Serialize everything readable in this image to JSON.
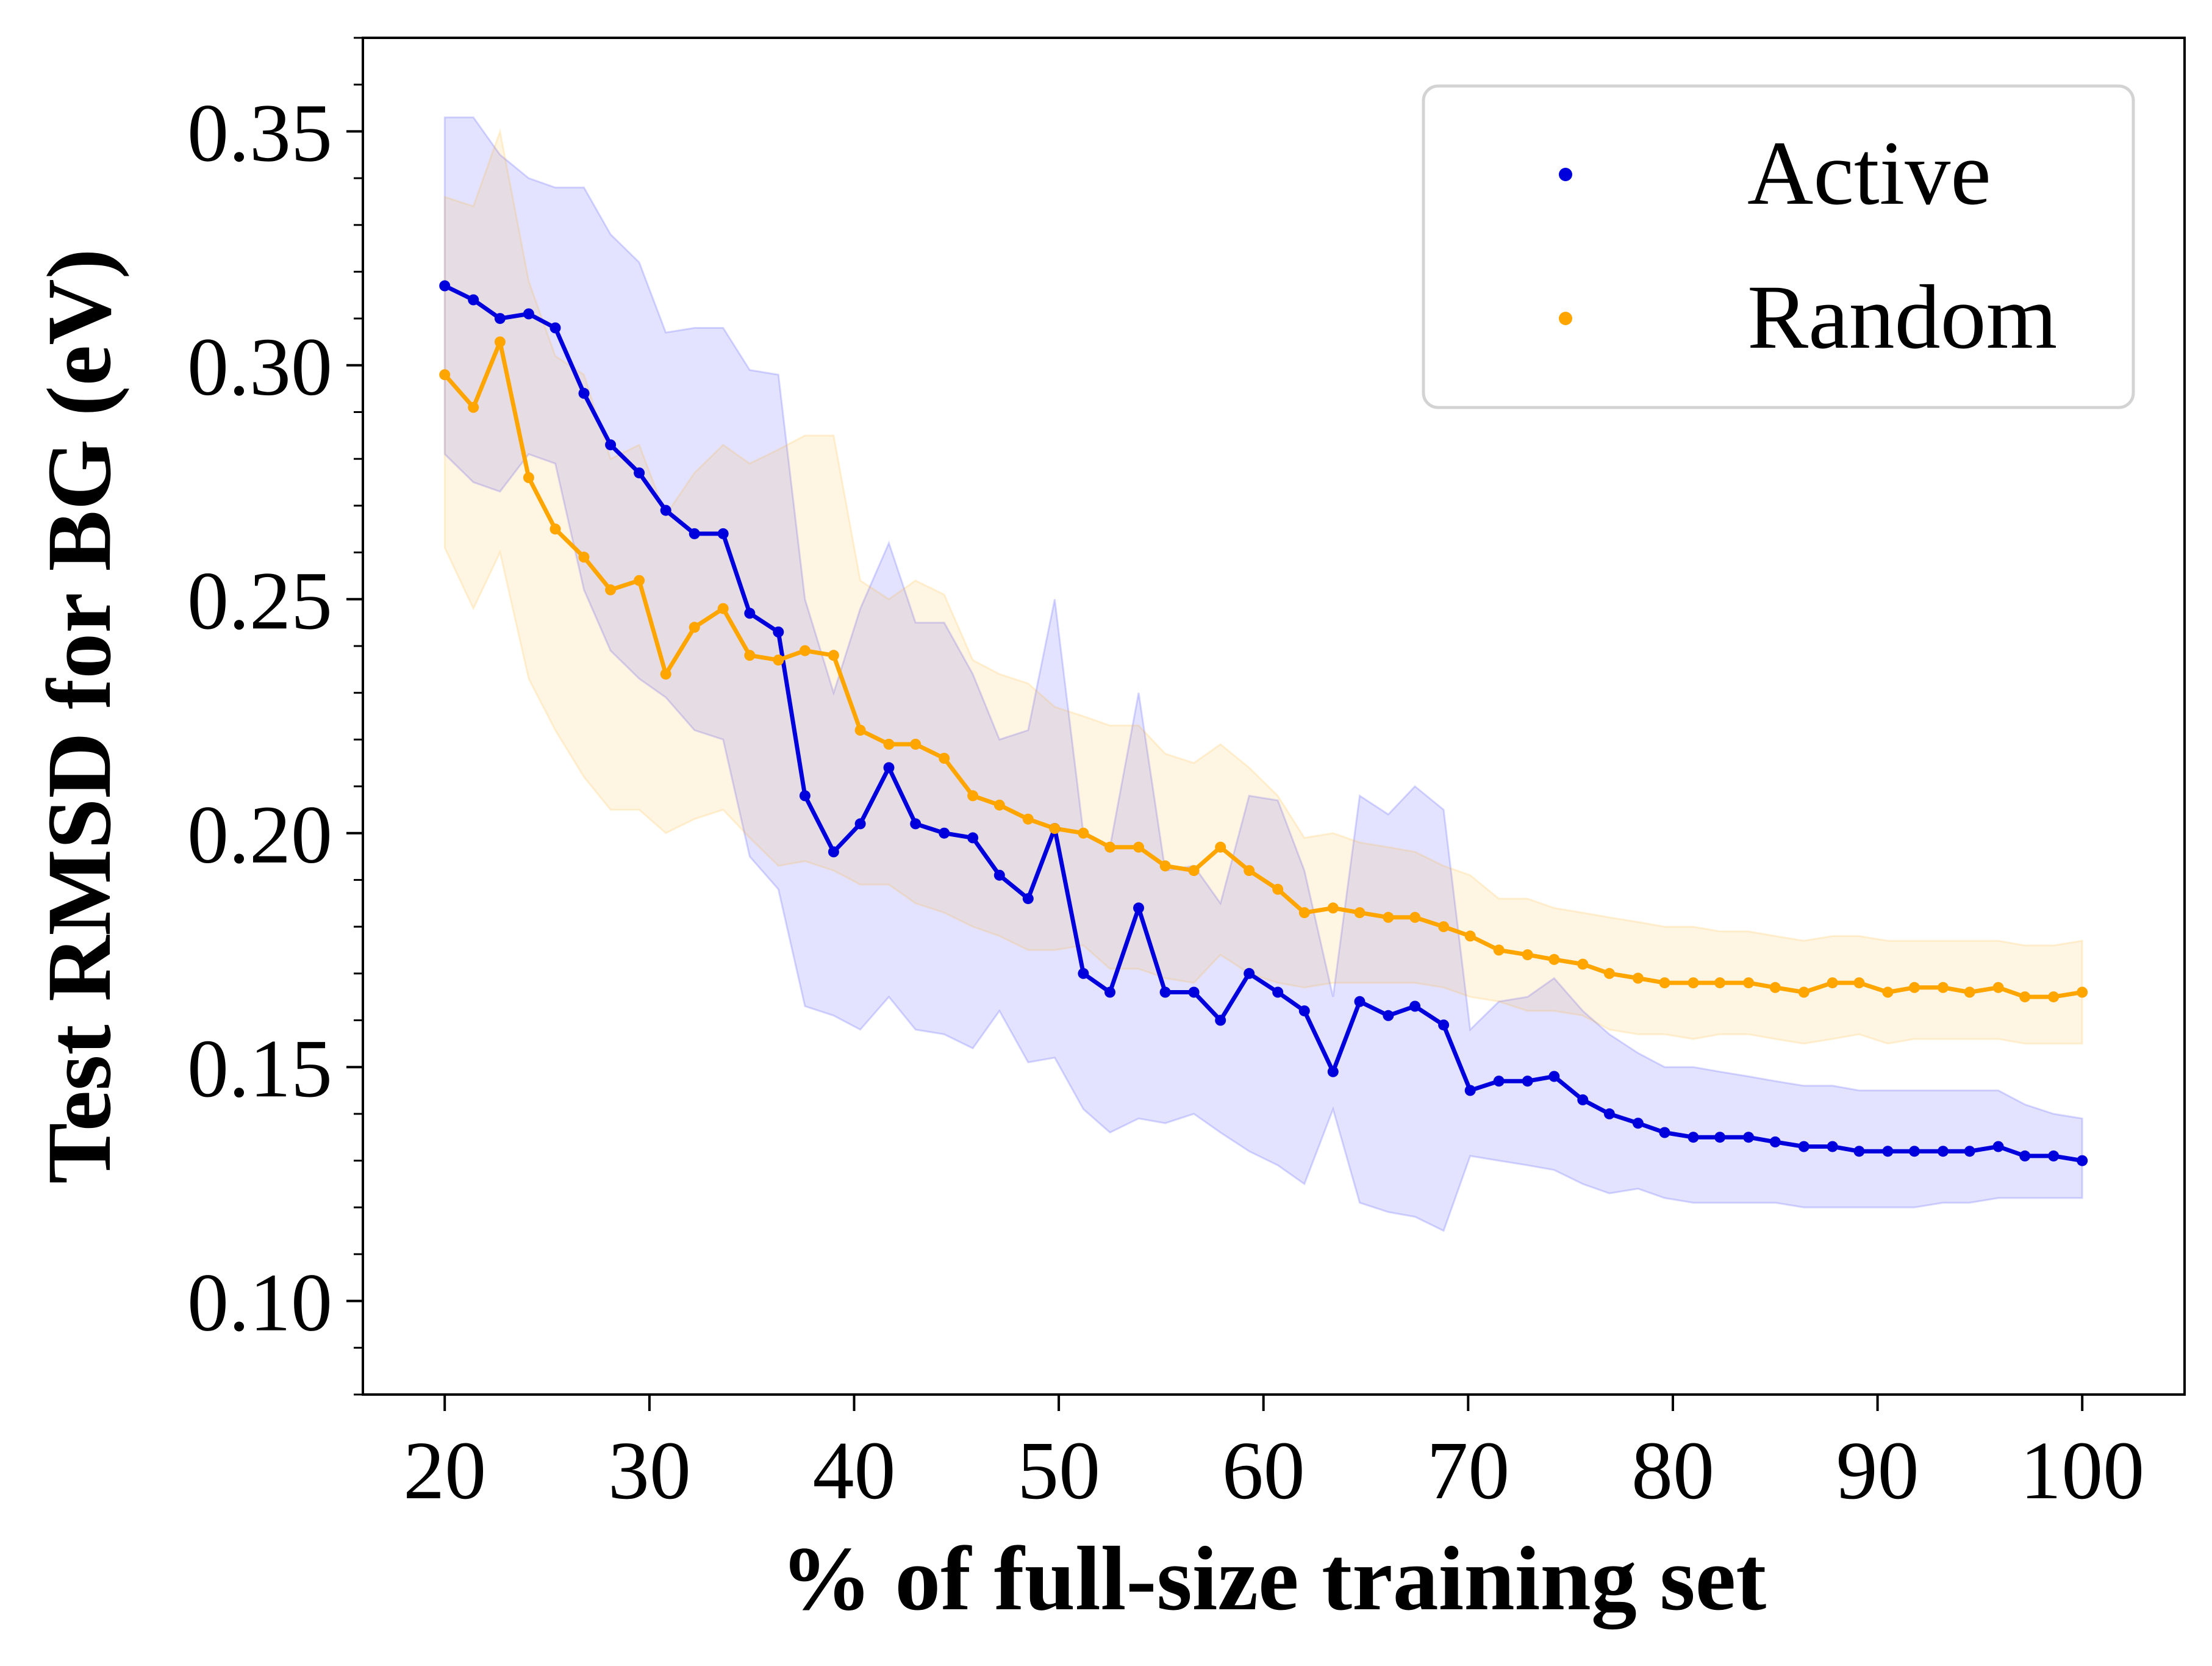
{
  "chart_data": {
    "type": "line",
    "xlabel": "% of full-size training set",
    "ylabel": "Test RMSD for BG (eV)",
    "xlim": [
      16,
      105
    ],
    "ylim": [
      0.08,
      0.37
    ],
    "xticks": [
      20,
      30,
      40,
      50,
      60,
      70,
      80,
      90,
      100
    ],
    "xtick_labels": [
      "20",
      "30",
      "40",
      "50",
      "60",
      "70",
      "80",
      "90",
      "100"
    ],
    "yticks": [
      0.1,
      0.15,
      0.2,
      0.25,
      0.3,
      0.35
    ],
    "ytick_labels": [
      "0.10",
      "0.15",
      "0.20",
      "0.25",
      "0.30",
      "0.35"
    ],
    "grid": false,
    "legend": "top-right",
    "x": [
      20,
      21.4,
      22.7,
      24.1,
      25.4,
      26.8,
      28.1,
      29.5,
      30.8,
      32.2,
      33.6,
      34.9,
      36.3,
      37.6,
      39.0,
      40.3,
      41.7,
      43.0,
      44.4,
      45.8,
      47.1,
      48.5,
      49.8,
      51.2,
      52.5,
      53.9,
      55.2,
      56.6,
      57.9,
      59.3,
      60.7,
      62.0,
      63.4,
      64.7,
      66.1,
      67.4,
      68.8,
      70.1,
      71.5,
      72.9,
      74.2,
      75.6,
      76.9,
      78.3,
      79.6,
      81.0,
      82.3,
      83.7,
      85.0,
      86.4,
      87.8,
      89.1,
      90.5,
      91.8,
      93.2,
      94.5,
      95.9,
      97.2,
      98.6,
      100.0
    ],
    "series": [
      {
        "name": "Active",
        "color": "#0000dd",
        "values": [
          0.317,
          0.314,
          0.31,
          0.311,
          0.308,
          0.294,
          0.283,
          0.277,
          0.269,
          0.264,
          0.264,
          0.247,
          0.243,
          0.208,
          0.196,
          0.202,
          0.214,
          0.202,
          0.2,
          0.199,
          0.191,
          0.186,
          0.201,
          0.17,
          0.166,
          0.184,
          0.166,
          0.166,
          0.16,
          0.17,
          0.166,
          0.162,
          0.149,
          0.164,
          0.161,
          0.163,
          0.159,
          0.145,
          0.147,
          0.147,
          0.148,
          0.143,
          0.14,
          0.138,
          0.136,
          0.135,
          0.135,
          0.135,
          0.134,
          0.133,
          0.133,
          0.132,
          0.132,
          0.132,
          0.132,
          0.132,
          0.133,
          0.131,
          0.131,
          0.13
        ],
        "upper": [
          0.353,
          0.353,
          0.345,
          0.34,
          0.338,
          0.338,
          0.328,
          0.322,
          0.307,
          0.308,
          0.308,
          0.299,
          0.298,
          0.25,
          0.23,
          0.248,
          0.262,
          0.245,
          0.245,
          0.234,
          0.22,
          0.222,
          0.25,
          0.2,
          0.197,
          0.23,
          0.192,
          0.193,
          0.185,
          0.208,
          0.207,
          0.192,
          0.165,
          0.208,
          0.204,
          0.21,
          0.205,
          0.158,
          0.164,
          0.165,
          0.169,
          0.162,
          0.157,
          0.153,
          0.15,
          0.15,
          0.149,
          0.148,
          0.147,
          0.146,
          0.146,
          0.145,
          0.145,
          0.145,
          0.145,
          0.145,
          0.145,
          0.142,
          0.14,
          0.139
        ],
        "lower": [
          0.281,
          0.275,
          0.273,
          0.281,
          0.279,
          0.252,
          0.239,
          0.233,
          0.229,
          0.222,
          0.22,
          0.195,
          0.188,
          0.163,
          0.161,
          0.158,
          0.165,
          0.158,
          0.157,
          0.154,
          0.162,
          0.151,
          0.152,
          0.141,
          0.136,
          0.139,
          0.138,
          0.14,
          0.136,
          0.132,
          0.129,
          0.125,
          0.141,
          0.121,
          0.119,
          0.118,
          0.115,
          0.131,
          0.13,
          0.129,
          0.128,
          0.125,
          0.123,
          0.124,
          0.122,
          0.121,
          0.121,
          0.121,
          0.121,
          0.12,
          0.12,
          0.12,
          0.12,
          0.12,
          0.121,
          0.121,
          0.122,
          0.122,
          0.122,
          0.122
        ]
      },
      {
        "name": "Random",
        "color": "#ffa500",
        "values": [
          0.298,
          0.291,
          0.305,
          0.276,
          0.265,
          0.259,
          0.252,
          0.254,
          0.234,
          0.244,
          0.248,
          0.238,
          0.237,
          0.239,
          0.238,
          0.222,
          0.219,
          0.219,
          0.216,
          0.208,
          0.206,
          0.203,
          0.201,
          0.2,
          0.197,
          0.197,
          0.193,
          0.192,
          0.197,
          0.192,
          0.188,
          0.183,
          0.184,
          0.183,
          0.182,
          0.182,
          0.18,
          0.178,
          0.175,
          0.174,
          0.173,
          0.172,
          0.17,
          0.169,
          0.168,
          0.168,
          0.168,
          0.168,
          0.167,
          0.166,
          0.168,
          0.168,
          0.166,
          0.167,
          0.167,
          0.166,
          0.167,
          0.165,
          0.165,
          0.166
        ],
        "upper": [
          0.336,
          0.334,
          0.35,
          0.318,
          0.302,
          0.298,
          0.28,
          0.283,
          0.268,
          0.277,
          0.283,
          0.279,
          0.282,
          0.285,
          0.285,
          0.254,
          0.25,
          0.254,
          0.251,
          0.237,
          0.234,
          0.232,
          0.227,
          0.225,
          0.223,
          0.223,
          0.217,
          0.215,
          0.219,
          0.214,
          0.208,
          0.199,
          0.2,
          0.198,
          0.197,
          0.196,
          0.193,
          0.191,
          0.186,
          0.186,
          0.184,
          0.183,
          0.182,
          0.181,
          0.18,
          0.18,
          0.179,
          0.179,
          0.178,
          0.177,
          0.178,
          0.178,
          0.177,
          0.177,
          0.177,
          0.177,
          0.177,
          0.176,
          0.176,
          0.177
        ],
        "lower": [
          0.261,
          0.248,
          0.26,
          0.233,
          0.222,
          0.212,
          0.205,
          0.205,
          0.2,
          0.203,
          0.205,
          0.199,
          0.193,
          0.194,
          0.192,
          0.189,
          0.189,
          0.185,
          0.183,
          0.18,
          0.178,
          0.175,
          0.175,
          0.176,
          0.171,
          0.171,
          0.169,
          0.168,
          0.174,
          0.17,
          0.168,
          0.167,
          0.168,
          0.168,
          0.168,
          0.168,
          0.167,
          0.165,
          0.164,
          0.162,
          0.162,
          0.161,
          0.158,
          0.157,
          0.157,
          0.156,
          0.157,
          0.157,
          0.156,
          0.155,
          0.156,
          0.157,
          0.155,
          0.156,
          0.156,
          0.156,
          0.156,
          0.155,
          0.155,
          0.155
        ]
      }
    ]
  }
}
